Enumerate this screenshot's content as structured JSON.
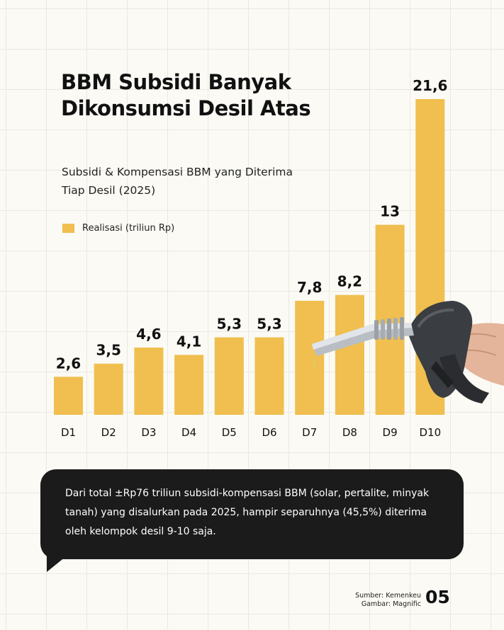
{
  "title": "BBM Subsidi Banyak Dikonsumsi Desil Atas",
  "subtitle": "Subsidi & Kompensasi BBM yang Diterima Tiap Desil (2025)",
  "legend_label": "Realisasi (triliun Rp)",
  "callout_text": "Dari total ±Rp76 triliun subsidi-kompensasi BBM (solar, pertalite, minyak tanah) yang disalurkan pada 2025, hampir separuhnya (45,5%) diterima oleh kelompok desil 9-10 saja.",
  "source_line1": "Sumber: Kemenkeu",
  "source_line2": "Gambar: Magnific",
  "page_number": "05",
  "colors": {
    "bar": "#f0bf4f",
    "callout_bg": "#1b1b1b",
    "background": "#fbfaf4"
  },
  "chart_data": {
    "type": "bar",
    "title": "BBM Subsidi Banyak Dikonsumsi Desil Atas",
    "subtitle": "Subsidi & Kompensasi BBM yang Diterima Tiap Desil (2025)",
    "categories": [
      "D1",
      "D2",
      "D3",
      "D4",
      "D5",
      "D6",
      "D7",
      "D8",
      "D9",
      "D10"
    ],
    "series": [
      {
        "name": "Realisasi (triliun Rp)",
        "values": [
          2.6,
          3.5,
          4.6,
          4.1,
          5.3,
          5.3,
          7.8,
          8.2,
          13,
          21.6
        ],
        "labels": [
          "2,6",
          "3,5",
          "4,6",
          "4,1",
          "5,3",
          "5,3",
          "7,8",
          "8,2",
          "13",
          "21,6"
        ]
      }
    ],
    "ylim": [
      0,
      21.6
    ],
    "grid": false,
    "legend": "top-left"
  }
}
